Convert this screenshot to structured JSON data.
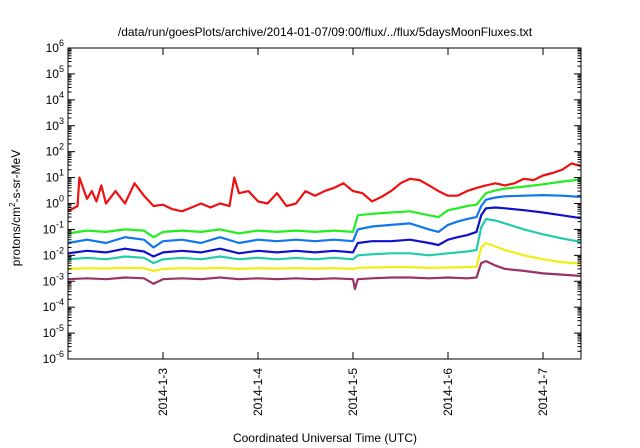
{
  "chart_data": {
    "type": "line",
    "title": "/data/run/goesPlots/archive/2014-01-07/09:00/flux/../flux/5daysMoonFluxes.txt",
    "xlabel": "Coordinated Universal Time (UTC)",
    "ylabel": "protons/cm2-s-sr-MeV",
    "ylabel_parts": {
      "before": "protons/cm",
      "sup": "2",
      "after": "-s-sr-MeV"
    },
    "y_scale": "log",
    "ylim": [
      1e-06,
      1000000.0
    ],
    "y_ticks": [
      {
        "value": 1e-06,
        "base": "10",
        "exp": "-6"
      },
      {
        "value": 1e-05,
        "base": "10",
        "exp": "-5"
      },
      {
        "value": 0.0001,
        "base": "10",
        "exp": "-4"
      },
      {
        "value": 0.001,
        "base": "10",
        "exp": "-3"
      },
      {
        "value": 0.01,
        "base": "10",
        "exp": "-2"
      },
      {
        "value": 0.1,
        "base": "10",
        "exp": "-1"
      },
      {
        "value": 1.0,
        "base": "10",
        "exp": "0"
      },
      {
        "value": 10.0,
        "base": "10",
        "exp": "1"
      },
      {
        "value": 100.0,
        "base": "10",
        "exp": "2"
      },
      {
        "value": 1000.0,
        "base": "10",
        "exp": "3"
      },
      {
        "value": 10000.0,
        "base": "10",
        "exp": "4"
      },
      {
        "value": 100000.0,
        "base": "10",
        "exp": "5"
      },
      {
        "value": 1000000.0,
        "base": "10",
        "exp": "6"
      }
    ],
    "x_unit": "day",
    "xlim": [
      2.0,
      7.4
    ],
    "x_ticks": [
      {
        "value": 3,
        "label": "2014-1-3"
      },
      {
        "value": 4,
        "label": "2014-1-4"
      },
      {
        "value": 5,
        "label": "2014-1-5"
      },
      {
        "value": 6,
        "label": "2014-1-6"
      },
      {
        "value": 7,
        "label": "2014-1-7"
      }
    ],
    "grid": false,
    "legend": "none",
    "series": [
      {
        "color": "#ee1111",
        "x": [
          2.0,
          2.1,
          2.12,
          2.2,
          2.25,
          2.3,
          2.35,
          2.4,
          2.5,
          2.6,
          2.7,
          2.8,
          2.9,
          3.0,
          3.1,
          3.2,
          3.3,
          3.4,
          3.5,
          3.6,
          3.7,
          3.75,
          3.8,
          3.9,
          4.0,
          4.1,
          4.2,
          4.3,
          4.4,
          4.5,
          4.6,
          4.7,
          4.8,
          4.9,
          5.0,
          5.1,
          5.2,
          5.3,
          5.4,
          5.5,
          5.6,
          5.7,
          5.8,
          5.9,
          6.0,
          6.1,
          6.2,
          6.3,
          6.4,
          6.5,
          6.6,
          6.7,
          6.8,
          6.9,
          7.0,
          7.1,
          7.2,
          7.3,
          7.4
        ],
        "values": [
          0.5,
          0.8,
          10,
          1.5,
          3,
          1.2,
          5,
          1.0,
          3,
          1.0,
          6,
          2,
          0.8,
          0.9,
          0.6,
          0.5,
          0.7,
          1.0,
          0.7,
          1.0,
          0.8,
          10,
          2.5,
          3,
          1.2,
          1.0,
          2.5,
          0.8,
          1.0,
          3,
          2,
          3,
          4,
          6,
          3,
          2.5,
          1.2,
          1.8,
          3,
          6,
          9,
          8,
          5,
          3,
          2,
          2,
          3,
          4,
          5,
          6,
          5,
          6,
          9,
          8,
          12,
          15,
          20,
          35,
          28
        ]
      },
      {
        "color": "#22ee22",
        "x": [
          2.0,
          2.2,
          2.4,
          2.6,
          2.8,
          2.9,
          3.0,
          3.2,
          3.4,
          3.6,
          3.8,
          4.0,
          4.2,
          4.4,
          4.6,
          4.8,
          5.0,
          5.05,
          5.2,
          5.4,
          5.6,
          5.8,
          5.9,
          6.0,
          6.1,
          6.2,
          6.3,
          6.35,
          6.4,
          6.5,
          6.6,
          6.8,
          7.0,
          7.2,
          7.4
        ],
        "values": [
          0.07,
          0.09,
          0.08,
          0.1,
          0.09,
          0.05,
          0.08,
          0.09,
          0.08,
          0.1,
          0.07,
          0.09,
          0.08,
          0.09,
          0.08,
          0.09,
          0.08,
          0.35,
          0.4,
          0.45,
          0.5,
          0.35,
          0.3,
          0.55,
          0.65,
          0.8,
          0.9,
          1.5,
          2.5,
          3.2,
          3.8,
          4.5,
          5.5,
          7,
          8.5
        ]
      },
      {
        "color": "#1177ee",
        "x": [
          2.0,
          2.2,
          2.4,
          2.6,
          2.8,
          2.9,
          3.0,
          3.2,
          3.4,
          3.6,
          3.8,
          4.0,
          4.2,
          4.4,
          4.6,
          4.8,
          5.0,
          5.05,
          5.2,
          5.4,
          5.6,
          5.8,
          5.9,
          6.0,
          6.1,
          6.2,
          6.3,
          6.35,
          6.4,
          6.5,
          6.6,
          6.8,
          7.0,
          7.2,
          7.4
        ],
        "values": [
          0.03,
          0.04,
          0.03,
          0.05,
          0.04,
          0.02,
          0.035,
          0.04,
          0.03,
          0.05,
          0.03,
          0.04,
          0.035,
          0.04,
          0.035,
          0.04,
          0.035,
          0.1,
          0.13,
          0.15,
          0.17,
          0.1,
          0.08,
          0.15,
          0.2,
          0.25,
          0.3,
          0.8,
          1.4,
          1.7,
          1.9,
          2.0,
          2.1,
          2.0,
          1.8
        ]
      },
      {
        "color": "#1111cc",
        "x": [
          2.0,
          2.2,
          2.4,
          2.6,
          2.8,
          2.9,
          3.0,
          3.2,
          3.4,
          3.6,
          3.8,
          4.0,
          4.2,
          4.4,
          4.6,
          4.8,
          5.0,
          5.05,
          5.2,
          5.4,
          5.6,
          5.8,
          5.9,
          6.0,
          6.1,
          6.2,
          6.3,
          6.35,
          6.4,
          6.5,
          6.6,
          6.8,
          7.0,
          7.2,
          7.4
        ],
        "values": [
          0.012,
          0.015,
          0.013,
          0.018,
          0.014,
          0.009,
          0.013,
          0.015,
          0.013,
          0.018,
          0.012,
          0.015,
          0.013,
          0.015,
          0.013,
          0.015,
          0.013,
          0.03,
          0.035,
          0.035,
          0.04,
          0.03,
          0.025,
          0.04,
          0.05,
          0.06,
          0.08,
          0.35,
          0.65,
          0.7,
          0.65,
          0.55,
          0.45,
          0.35,
          0.27
        ]
      },
      {
        "color": "#22ccaa",
        "x": [
          2.0,
          2.2,
          2.4,
          2.6,
          2.8,
          2.9,
          3.0,
          3.2,
          3.4,
          3.6,
          3.8,
          4.0,
          4.2,
          4.4,
          4.6,
          4.8,
          5.0,
          5.05,
          5.2,
          5.4,
          5.6,
          5.8,
          6.0,
          6.2,
          6.3,
          6.35,
          6.4,
          6.5,
          6.6,
          6.8,
          7.0,
          7.2,
          7.4
        ],
        "values": [
          0.007,
          0.008,
          0.007,
          0.009,
          0.008,
          0.005,
          0.007,
          0.008,
          0.007,
          0.009,
          0.007,
          0.008,
          0.007,
          0.008,
          0.007,
          0.008,
          0.007,
          0.01,
          0.011,
          0.012,
          0.012,
          0.01,
          0.012,
          0.014,
          0.016,
          0.12,
          0.25,
          0.22,
          0.17,
          0.1,
          0.065,
          0.045,
          0.033
        ]
      },
      {
        "color": "#eeee11",
        "x": [
          2.0,
          2.2,
          2.4,
          2.6,
          2.8,
          2.9,
          3.0,
          3.2,
          3.4,
          3.6,
          3.8,
          4.0,
          4.2,
          4.4,
          4.6,
          4.8,
          5.0,
          5.05,
          5.2,
          5.4,
          5.6,
          5.8,
          6.0,
          6.2,
          6.3,
          6.35,
          6.4,
          6.5,
          6.6,
          6.8,
          7.0,
          7.2,
          7.4
        ],
        "values": [
          0.003,
          0.0032,
          0.0031,
          0.0033,
          0.0032,
          0.0025,
          0.003,
          0.0032,
          0.0031,
          0.0033,
          0.003,
          0.0032,
          0.0031,
          0.0032,
          0.0031,
          0.0032,
          0.003,
          0.0033,
          0.0034,
          0.0035,
          0.0035,
          0.0033,
          0.0034,
          0.0035,
          0.0036,
          0.02,
          0.03,
          0.022,
          0.016,
          0.01,
          0.007,
          0.0055,
          0.0048
        ]
      },
      {
        "color": "#993366",
        "x": [
          2.0,
          2.2,
          2.4,
          2.6,
          2.8,
          2.9,
          3.0,
          3.2,
          3.4,
          3.6,
          3.8,
          4.0,
          4.2,
          4.4,
          4.6,
          4.8,
          5.0,
          5.02,
          5.05,
          5.2,
          5.4,
          5.6,
          5.8,
          6.0,
          6.2,
          6.3,
          6.35,
          6.4,
          6.5,
          6.6,
          6.8,
          7.0,
          7.2,
          7.4
        ],
        "values": [
          0.0012,
          0.0013,
          0.0012,
          0.0014,
          0.0013,
          0.0008,
          0.0012,
          0.0013,
          0.0012,
          0.0014,
          0.0012,
          0.0013,
          0.0012,
          0.0013,
          0.0012,
          0.0013,
          0.0012,
          0.0005,
          0.0012,
          0.0013,
          0.0014,
          0.0014,
          0.0013,
          0.0014,
          0.0013,
          0.0014,
          0.005,
          0.006,
          0.004,
          0.003,
          0.0025,
          0.002,
          0.0018,
          0.0016
        ]
      }
    ]
  }
}
